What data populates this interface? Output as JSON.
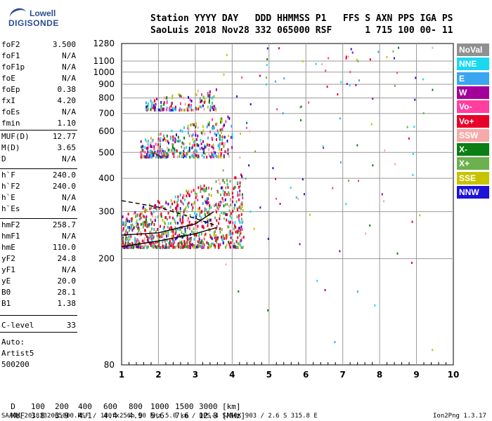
{
  "logo": {
    "line1": "Lowell",
    "line2": "DIGISONDE"
  },
  "header": {
    "labels": "Station YYYY DAY   DDD HHMMSS P1   FFS S AXN PPS IGA PS",
    "values": "SaoLuis 2018 Nov28 332 065000 RSF      1 715 100 00- 11"
  },
  "params": [
    {
      "name": "foF2",
      "value": "3.500"
    },
    {
      "name": "foF1",
      "value": "N/A"
    },
    {
      "name": "foF1p",
      "value": "N/A"
    },
    {
      "name": "foE",
      "value": "N/A"
    },
    {
      "name": "foEp",
      "value": "0.38"
    },
    {
      "name": "fxI",
      "value": "4.20"
    },
    {
      "name": "foEs",
      "value": "N/A"
    },
    {
      "name": "fmin",
      "value": "1.10"
    },
    {
      "name": "MUF(D)",
      "value": "12.77"
    },
    {
      "name": "M(D)",
      "value": "3.65"
    },
    {
      "name": "D",
      "value": "N/A"
    },
    {
      "name": "h`F",
      "value": "240.0"
    },
    {
      "name": "h`F2",
      "value": "240.0"
    },
    {
      "name": "h`E",
      "value": "N/A"
    },
    {
      "name": "h`Es",
      "value": "N/A"
    },
    {
      "name": "hmF2",
      "value": "258.7"
    },
    {
      "name": "hmF1",
      "value": "N/A"
    },
    {
      "name": "hmE",
      "value": "110.0"
    },
    {
      "name": "yF2",
      "value": "24.8"
    },
    {
      "name": "yF1",
      "value": "N/A"
    },
    {
      "name": "yE",
      "value": "20.0"
    },
    {
      "name": "B0",
      "value": "28.1"
    },
    {
      "name": "B1",
      "value": "1.38"
    },
    {
      "name": "C-level",
      "value": "33"
    }
  ],
  "auto": {
    "line1": "Auto:",
    "line2": "Artist5",
    "line3": "500200"
  },
  "legend": [
    {
      "label": "NoVal",
      "color": "#909090"
    },
    {
      "label": "NNE",
      "color": "#19d8f0"
    },
    {
      "label": "E",
      "color": "#3aa6f0"
    },
    {
      "label": "W",
      "color": "#a3009b"
    },
    {
      "label": "Vo-",
      "color": "#ff3ea0"
    },
    {
      "label": "Vo+",
      "color": "#e8002a"
    },
    {
      "label": "SSW",
      "color": "#f7a9a9"
    },
    {
      "label": "X-",
      "color": "#0b7e14"
    },
    {
      "label": "X+",
      "color": "#6cb04f"
    },
    {
      "label": "SSE",
      "color": "#c8c300"
    },
    {
      "label": "NNW",
      "color": "#1d12d9"
    }
  ],
  "table": {
    "d_label": "D",
    "d_values": [
      "100",
      "200",
      "400",
      "600",
      "800",
      "1000",
      "1500",
      "3000"
    ],
    "d_unit": "[km]",
    "muf_label": "MUF",
    "muf_values": [
      "3.8",
      "3.9",
      "4.1",
      "4.4",
      "4.9",
      "5.6",
      "7.6",
      "12.8"
    ],
    "muf_unit": "[MHz]"
  },
  "footer": {
    "left": "SAA0K_2018332065000.RSF / 180fx256h 50 kHz 5.0 km / DPS-4 SAA0K 903 / 2.6 S 315.8 E",
    "right": "Ion2Png 1.3.17"
  },
  "chart_data": {
    "type": "scatter",
    "title": "",
    "xlabel": "",
    "ylabel": "",
    "x_scale": "linear",
    "y_scale": "log",
    "xlim": [
      1,
      10
    ],
    "ylim": [
      80,
      1280
    ],
    "x_ticks": [
      1,
      2,
      3,
      4,
      5,
      6,
      7,
      8,
      9,
      10
    ],
    "y_ticks": [
      80,
      200,
      300,
      400,
      500,
      600,
      700,
      800,
      900,
      1000,
      1100,
      1280
    ],
    "grid": true,
    "trace_clusters": [
      {
        "region": "F-layer o/x echoes",
        "freq_range_mhz": [
          1.0,
          4.3
        ],
        "height_range_km": [
          220,
          420
        ]
      },
      {
        "region": "second-hop echoes",
        "freq_range_mhz": [
          1.5,
          4.0
        ],
        "height_range_km": [
          480,
          700
        ]
      },
      {
        "region": "third-hop echoes",
        "freq_range_mhz": [
          1.6,
          3.6
        ],
        "height_range_km": [
          720,
          880
        ]
      }
    ],
    "lines": [
      {
        "style": "solid",
        "points": [
          [
            1.0,
            222
          ],
          [
            2.0,
            233
          ],
          [
            3.0,
            248
          ],
          [
            3.6,
            262
          ]
        ]
      },
      {
        "style": "solid",
        "points": [
          [
            1.0,
            245
          ],
          [
            2.0,
            250
          ],
          [
            3.0,
            270
          ],
          [
            3.5,
            300
          ]
        ]
      },
      {
        "style": "dashed",
        "points": [
          [
            1.0,
            330
          ],
          [
            2.0,
            312
          ],
          [
            3.0,
            283
          ],
          [
            3.6,
            265
          ]
        ]
      }
    ]
  }
}
